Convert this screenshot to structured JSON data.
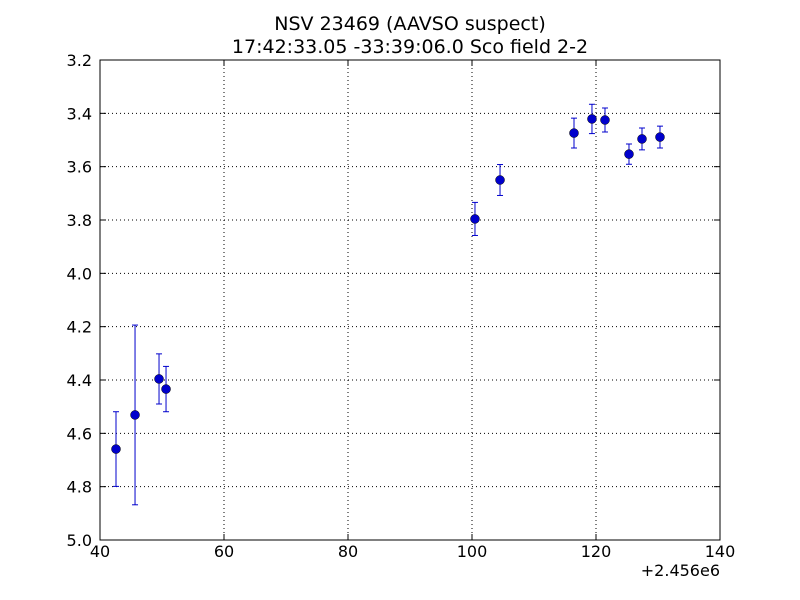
{
  "chart_data": {
    "type": "errorbar",
    "title": "NSV 23469  (AAVSO suspect)",
    "subtitle": "17:42:33.05 -33:39:06.0 Sco field 2-2",
    "x_offset_label": "+2.456e6",
    "x": [
      42.58,
      45.65,
      49.52,
      50.65,
      100.48,
      104.52,
      116.45,
      119.35,
      121.45,
      125.32,
      127.42,
      130.32
    ],
    "values": [
      4.659,
      4.531,
      4.396,
      4.434,
      3.796,
      3.65,
      3.474,
      3.421,
      3.425,
      3.553,
      3.496,
      3.489
    ],
    "errors": [
      0.14,
      0.337,
      0.094,
      0.085,
      0.062,
      0.058,
      0.056,
      0.055,
      0.045,
      0.038,
      0.041,
      0.041
    ],
    "color": "#0000cc",
    "xlim": [
      40,
      140
    ],
    "xticks": [
      40,
      60,
      80,
      100,
      120,
      140
    ],
    "ylim": [
      3.2,
      5.0
    ],
    "invert_y": true,
    "yticks": [
      3.2,
      3.4,
      3.6,
      3.8,
      {
        "value": 4.0,
        "label": "4.0"
      },
      4.2,
      4.4,
      4.6,
      4.8,
      {
        "value": 5.0,
        "label": "5.0"
      }
    ],
    "grid": true
  }
}
